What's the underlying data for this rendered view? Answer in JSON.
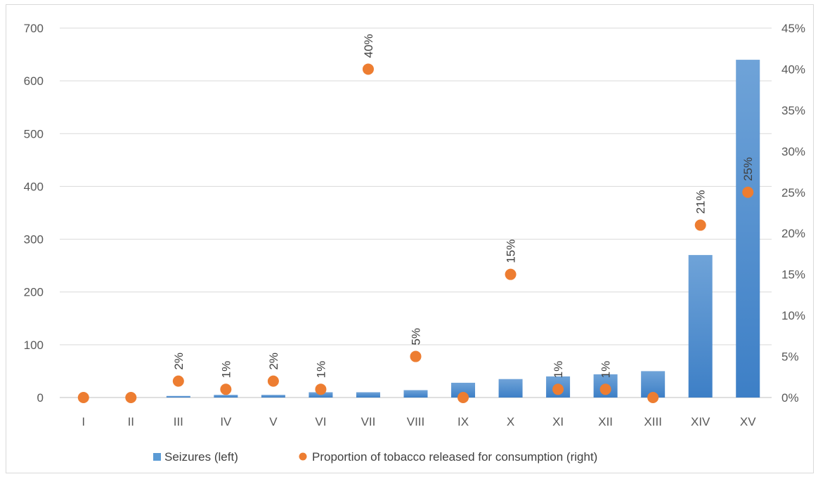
{
  "chart_data": {
    "type": "bar",
    "categories": [
      "I",
      "II",
      "III",
      "IV",
      "V",
      "VI",
      "VII",
      "VIII",
      "IX",
      "X",
      "XI",
      "XII",
      "XIII",
      "XIV",
      "XV"
    ],
    "series": [
      {
        "name": "Seizures (left)",
        "type": "bar",
        "axis": "left",
        "values": [
          0,
          0,
          3,
          5,
          5,
          10,
          10,
          14,
          28,
          35,
          40,
          44,
          50,
          270,
          640
        ]
      },
      {
        "name": "Proportion of tobacco released for consumption (right)",
        "type": "scatter",
        "axis": "right",
        "values": [
          0,
          0,
          2,
          1,
          2,
          1,
          40,
          5,
          0,
          15,
          1,
          1,
          0,
          21,
          25
        ],
        "labels": [
          "",
          "",
          "2%",
          "1%",
          "2%",
          "1%",
          "40%",
          "5%",
          "",
          "15%",
          "1%",
          "1%",
          "",
          "21%",
          "25%"
        ]
      }
    ],
    "yleft": {
      "lim": [
        0,
        700
      ],
      "ticks": [
        "0",
        "100",
        "200",
        "300",
        "400",
        "500",
        "600",
        "700"
      ]
    },
    "yright": {
      "lim": [
        0,
        45
      ],
      "ticks": [
        "0%",
        "5%",
        "10%",
        "15%",
        "20%",
        "25%",
        "30%",
        "35%",
        "40%",
        "45%"
      ]
    },
    "grid": true,
    "legend": "bottom",
    "colors": {
      "bar_top": "#6fa3d8",
      "bar_bottom": "#3d7fc6",
      "marker": "#ed7d31",
      "grid": "#d9d9d9"
    }
  }
}
